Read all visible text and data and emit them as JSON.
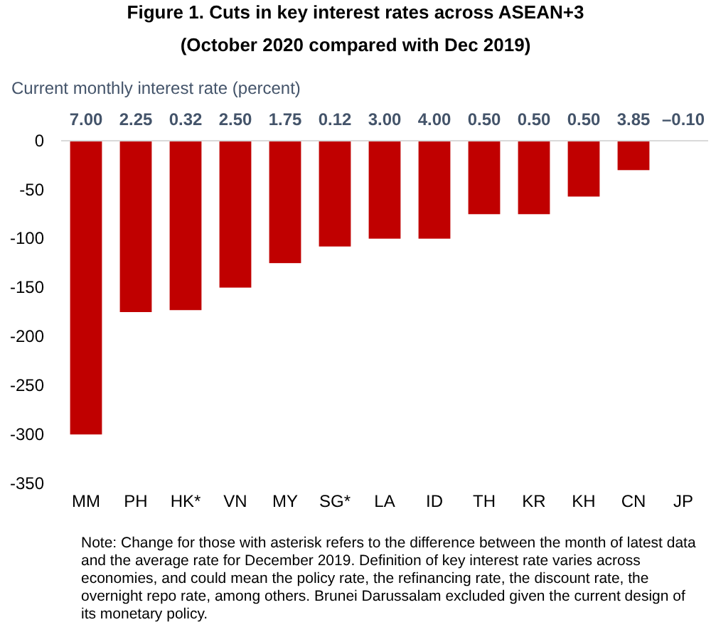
{
  "chart_data": {
    "type": "bar",
    "title": "Figure 1. Cuts in key interest rates across ASEAN+3",
    "subtitle": "(October 2020 compared with Dec 2019)",
    "ylabel": "Current monthly interest rate (percent)",
    "categories": [
      "MM",
      "PH",
      "HK*",
      "VN",
      "MY",
      "SG*",
      "LA",
      "ID",
      "TH",
      "KR",
      "KH",
      "CN",
      "JP"
    ],
    "values": [
      -300,
      -175,
      -173,
      -150,
      -125,
      -108,
      -100,
      -100,
      -75,
      -75,
      -57,
      -30,
      0
    ],
    "color": "#c00000",
    "ylim": [
      -350,
      0
    ],
    "yticks": [
      -350,
      -300,
      -250,
      -200,
      -150,
      -100,
      -50,
      0
    ],
    "grid": false,
    "annotations": [
      "7.00",
      "2.25",
      "0.32",
      "2.50",
      "1.75",
      "0.12",
      "3.00",
      "4.00",
      "0.50",
      "0.50",
      "0.50",
      "3.85",
      "–0.10",
      "Note: Change for those with asterisk refers to the difference between the month of latest data and the average rate for December 2019. Definition of key interest rate varies across economies, and could mean the policy rate, the refinancing rate, the discount rate, the overnight repo rate, among others. Brunei Darussalam excluded given the current design of its monetary policy."
    ]
  }
}
